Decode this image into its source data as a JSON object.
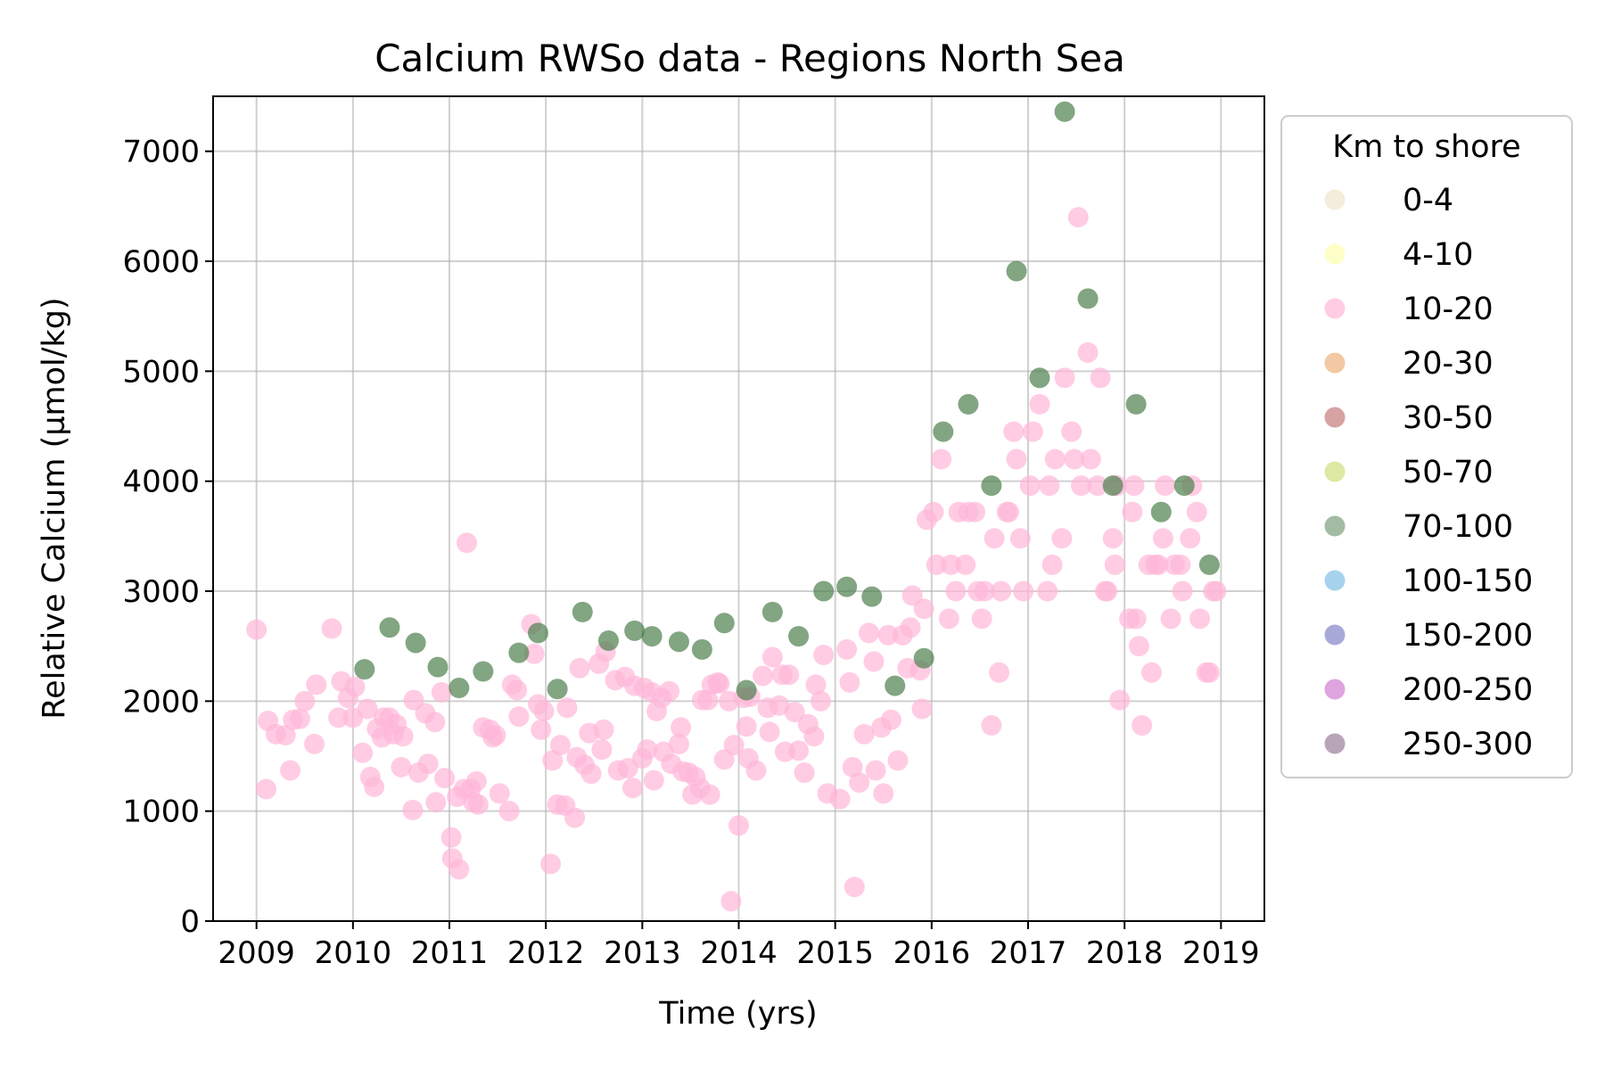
{
  "chart_data": {
    "type": "scatter",
    "title": "Calcium RWSo data - Regions North Sea",
    "xlabel": "Time (yrs)",
    "ylabel": "Relative Calcium (µmol/kg)",
    "xlim": [
      2008.55,
      2019.45
    ],
    "ylim": [
      0,
      7500
    ],
    "x_ticks": [
      "2009",
      "2010",
      "2011",
      "2012",
      "2013",
      "2014",
      "2015",
      "2016",
      "2017",
      "2018",
      "2019"
    ],
    "y_ticks": [
      "0",
      "1000",
      "2000",
      "3000",
      "4000",
      "5000",
      "6000",
      "7000"
    ],
    "grid": true,
    "legend": {
      "title": "Km to shore",
      "placement": "outside-right",
      "entries": [
        {
          "label": "0-4",
          "color": "#efe6cc"
        },
        {
          "label": "4-10",
          "color": "#fdfdb0"
        },
        {
          "label": "10-20",
          "color": "#ffb6d9"
        },
        {
          "label": "20-30",
          "color": "#ecb27a"
        },
        {
          "label": "30-50",
          "color": "#c47a7a"
        },
        {
          "label": "50-70",
          "color": "#cfe07a"
        },
        {
          "label": "70-100",
          "color": "#7a9e7a"
        },
        {
          "label": "100-150",
          "color": "#80bfe6"
        },
        {
          "label": "150-200",
          "color": "#8585c9"
        },
        {
          "label": "200-250",
          "color": "#d17ed1"
        },
        {
          "label": "250-300",
          "color": "#9a7f99"
        }
      ]
    },
    "series": [
      {
        "name": "10-20",
        "color": "#ffb6d9",
        "points": [
          [
            2009.0,
            2650
          ],
          [
            2009.1,
            1200
          ],
          [
            2009.12,
            1820
          ],
          [
            2009.2,
            1700
          ],
          [
            2009.3,
            1690
          ],
          [
            2009.35,
            1370
          ],
          [
            2009.38,
            1830
          ],
          [
            2009.45,
            1840
          ],
          [
            2009.5,
            2000
          ],
          [
            2009.6,
            1610
          ],
          [
            2009.62,
            2150
          ],
          [
            2009.78,
            2660
          ],
          [
            2009.85,
            1850
          ],
          [
            2009.88,
            2180
          ],
          [
            2009.95,
            2030
          ],
          [
            2010.0,
            1850
          ],
          [
            2010.02,
            2130
          ],
          [
            2010.1,
            1530
          ],
          [
            2010.15,
            1930
          ],
          [
            2010.18,
            1310
          ],
          [
            2010.22,
            1220
          ],
          [
            2010.25,
            1750
          ],
          [
            2010.3,
            1670
          ],
          [
            2010.32,
            1850
          ],
          [
            2010.38,
            1850
          ],
          [
            2010.42,
            1700
          ],
          [
            2010.45,
            1790
          ],
          [
            2010.5,
            1400
          ],
          [
            2010.52,
            1680
          ],
          [
            2010.62,
            1010
          ],
          [
            2010.63,
            2010
          ],
          [
            2010.68,
            1350
          ],
          [
            2010.75,
            1890
          ],
          [
            2010.78,
            1430
          ],
          [
            2010.85,
            1810
          ],
          [
            2010.86,
            1080
          ],
          [
            2010.92,
            2080
          ],
          [
            2010.95,
            1300
          ],
          [
            2011.02,
            760
          ],
          [
            2011.03,
            570
          ],
          [
            2011.08,
            1130
          ],
          [
            2011.1,
            470
          ],
          [
            2011.15,
            1200
          ],
          [
            2011.18,
            3440
          ],
          [
            2011.22,
            1200
          ],
          [
            2011.25,
            1080
          ],
          [
            2011.28,
            1270
          ],
          [
            2011.3,
            1060
          ],
          [
            2011.35,
            1760
          ],
          [
            2011.42,
            1740
          ],
          [
            2011.45,
            1670
          ],
          [
            2011.48,
            1690
          ],
          [
            2011.52,
            1160
          ],
          [
            2011.62,
            1000
          ],
          [
            2011.65,
            2150
          ],
          [
            2011.7,
            2100
          ],
          [
            2011.72,
            1860
          ],
          [
            2011.85,
            2700
          ],
          [
            2011.88,
            2430
          ],
          [
            2011.92,
            1970
          ],
          [
            2011.95,
            1740
          ],
          [
            2011.98,
            1910
          ],
          [
            2012.05,
            520
          ],
          [
            2012.07,
            1460
          ],
          [
            2012.12,
            1060
          ],
          [
            2012.15,
            1600
          ],
          [
            2012.2,
            1050
          ],
          [
            2012.22,
            1940
          ],
          [
            2012.3,
            940
          ],
          [
            2012.32,
            1490
          ],
          [
            2012.35,
            2300
          ],
          [
            2012.4,
            1420
          ],
          [
            2012.45,
            1710
          ],
          [
            2012.47,
            1340
          ],
          [
            2012.55,
            2340
          ],
          [
            2012.58,
            1560
          ],
          [
            2012.6,
            1740
          ],
          [
            2012.62,
            2450
          ],
          [
            2012.72,
            2190
          ],
          [
            2012.75,
            1370
          ],
          [
            2012.82,
            2220
          ],
          [
            2012.85,
            1390
          ],
          [
            2012.9,
            1210
          ],
          [
            2012.92,
            2140
          ],
          [
            2013.0,
            1480
          ],
          [
            2013.02,
            2120
          ],
          [
            2013.05,
            1560
          ],
          [
            2013.1,
            2080
          ],
          [
            2013.12,
            1280
          ],
          [
            2013.15,
            1910
          ],
          [
            2013.2,
            2030
          ],
          [
            2013.22,
            1540
          ],
          [
            2013.28,
            2090
          ],
          [
            2013.3,
            1430
          ],
          [
            2013.38,
            1610
          ],
          [
            2013.4,
            1760
          ],
          [
            2013.42,
            1360
          ],
          [
            2013.48,
            1350
          ],
          [
            2013.52,
            1150
          ],
          [
            2013.55,
            1310
          ],
          [
            2013.6,
            1210
          ],
          [
            2013.62,
            2010
          ],
          [
            2013.68,
            2010
          ],
          [
            2013.7,
            1150
          ],
          [
            2013.72,
            2150
          ],
          [
            2013.78,
            2170
          ],
          [
            2013.8,
            2160
          ],
          [
            2013.85,
            1470
          ],
          [
            2013.9,
            2000
          ],
          [
            2013.92,
            180
          ],
          [
            2013.95,
            1600
          ],
          [
            2014.0,
            870
          ],
          [
            2014.05,
            2030
          ],
          [
            2014.08,
            1770
          ],
          [
            2014.1,
            1480
          ],
          [
            2014.12,
            2040
          ],
          [
            2014.18,
            1370
          ],
          [
            2014.25,
            2230
          ],
          [
            2014.3,
            1940
          ],
          [
            2014.32,
            1720
          ],
          [
            2014.35,
            2400
          ],
          [
            2014.42,
            1960
          ],
          [
            2014.45,
            2240
          ],
          [
            2014.48,
            1540
          ],
          [
            2014.52,
            2240
          ],
          [
            2014.58,
            1900
          ],
          [
            2014.62,
            1550
          ],
          [
            2014.68,
            1350
          ],
          [
            2014.72,
            1790
          ],
          [
            2014.78,
            1680
          ],
          [
            2014.8,
            2150
          ],
          [
            2014.85,
            2000
          ],
          [
            2014.88,
            2420
          ],
          [
            2014.92,
            1160
          ],
          [
            2015.05,
            1110
          ],
          [
            2015.12,
            2470
          ],
          [
            2015.15,
            2170
          ],
          [
            2015.18,
            1400
          ],
          [
            2015.2,
            310
          ],
          [
            2015.25,
            1260
          ],
          [
            2015.3,
            1700
          ],
          [
            2015.35,
            2620
          ],
          [
            2015.4,
            2360
          ],
          [
            2015.42,
            1370
          ],
          [
            2015.48,
            1760
          ],
          [
            2015.5,
            1160
          ],
          [
            2015.55,
            2600
          ],
          [
            2015.58,
            1830
          ],
          [
            2015.65,
            1460
          ],
          [
            2015.7,
            2600
          ],
          [
            2015.75,
            2300
          ],
          [
            2015.78,
            2670
          ],
          [
            2015.8,
            2960
          ],
          [
            2015.88,
            2280
          ],
          [
            2015.9,
            1930
          ],
          [
            2015.92,
            2840
          ],
          [
            2015.95,
            3650
          ],
          [
            2016.02,
            3720
          ],
          [
            2016.05,
            3240
          ],
          [
            2016.1,
            4200
          ],
          [
            2016.18,
            2750
          ],
          [
            2016.2,
            3240
          ],
          [
            2016.25,
            3000
          ],
          [
            2016.28,
            3720
          ],
          [
            2016.35,
            3240
          ],
          [
            2016.38,
            3720
          ],
          [
            2016.45,
            3720
          ],
          [
            2016.48,
            3000
          ],
          [
            2016.52,
            2750
          ],
          [
            2016.55,
            3000
          ],
          [
            2016.62,
            1780
          ],
          [
            2016.65,
            3480
          ],
          [
            2016.7,
            2260
          ],
          [
            2016.72,
            3000
          ],
          [
            2016.78,
            3720
          ],
          [
            2016.8,
            3720
          ],
          [
            2016.85,
            4450
          ],
          [
            2016.88,
            4200
          ],
          [
            2016.92,
            3480
          ],
          [
            2016.95,
            3000
          ],
          [
            2017.02,
            3960
          ],
          [
            2017.05,
            4450
          ],
          [
            2017.12,
            4700
          ],
          [
            2017.2,
            3000
          ],
          [
            2017.22,
            3960
          ],
          [
            2017.25,
            3240
          ],
          [
            2017.28,
            4200
          ],
          [
            2017.35,
            3480
          ],
          [
            2017.38,
            4940
          ],
          [
            2017.45,
            4450
          ],
          [
            2017.48,
            4200
          ],
          [
            2017.52,
            6400
          ],
          [
            2017.55,
            3960
          ],
          [
            2017.62,
            5170
          ],
          [
            2017.65,
            4200
          ],
          [
            2017.72,
            3960
          ],
          [
            2017.75,
            4940
          ],
          [
            2017.8,
            3000
          ],
          [
            2017.82,
            3000
          ],
          [
            2017.88,
            3480
          ],
          [
            2017.9,
            3240
          ],
          [
            2017.92,
            3960
          ],
          [
            2017.95,
            2010
          ],
          [
            2018.05,
            2750
          ],
          [
            2018.08,
            3720
          ],
          [
            2018.1,
            3960
          ],
          [
            2018.12,
            2750
          ],
          [
            2018.15,
            2500
          ],
          [
            2018.18,
            1780
          ],
          [
            2018.25,
            3240
          ],
          [
            2018.28,
            2260
          ],
          [
            2018.32,
            3240
          ],
          [
            2018.35,
            3240
          ],
          [
            2018.4,
            3480
          ],
          [
            2018.42,
            3960
          ],
          [
            2018.48,
            2750
          ],
          [
            2018.52,
            3240
          ],
          [
            2018.58,
            3240
          ],
          [
            2018.6,
            3000
          ],
          [
            2018.68,
            3480
          ],
          [
            2018.7,
            3960
          ],
          [
            2018.75,
            3720
          ],
          [
            2018.78,
            2750
          ],
          [
            2018.85,
            2260
          ],
          [
            2018.88,
            2260
          ],
          [
            2018.92,
            3000
          ],
          [
            2018.95,
            3000
          ]
        ]
      },
      {
        "name": "70-100",
        "color": "#4d7f4d",
        "points": [
          [
            2010.12,
            2290
          ],
          [
            2010.38,
            2670
          ],
          [
            2010.65,
            2530
          ],
          [
            2010.88,
            2310
          ],
          [
            2011.1,
            2120
          ],
          [
            2011.35,
            2270
          ],
          [
            2011.72,
            2440
          ],
          [
            2011.92,
            2620
          ],
          [
            2012.12,
            2110
          ],
          [
            2012.38,
            2810
          ],
          [
            2012.65,
            2550
          ],
          [
            2012.92,
            2640
          ],
          [
            2013.1,
            2590
          ],
          [
            2013.38,
            2540
          ],
          [
            2013.62,
            2470
          ],
          [
            2013.85,
            2710
          ],
          [
            2014.08,
            2100
          ],
          [
            2014.35,
            2810
          ],
          [
            2014.62,
            2590
          ],
          [
            2014.88,
            3000
          ],
          [
            2015.12,
            3040
          ],
          [
            2015.38,
            2950
          ],
          [
            2015.62,
            2140
          ],
          [
            2015.92,
            2390
          ],
          [
            2016.12,
            4450
          ],
          [
            2016.38,
            4700
          ],
          [
            2016.62,
            3960
          ],
          [
            2016.88,
            5910
          ],
          [
            2017.12,
            4940
          ],
          [
            2017.38,
            7360
          ],
          [
            2017.62,
            5660
          ],
          [
            2017.88,
            3960
          ],
          [
            2018.12,
            4700
          ],
          [
            2018.38,
            3720
          ],
          [
            2018.62,
            3960
          ],
          [
            2018.88,
            3240
          ]
        ]
      }
    ]
  }
}
